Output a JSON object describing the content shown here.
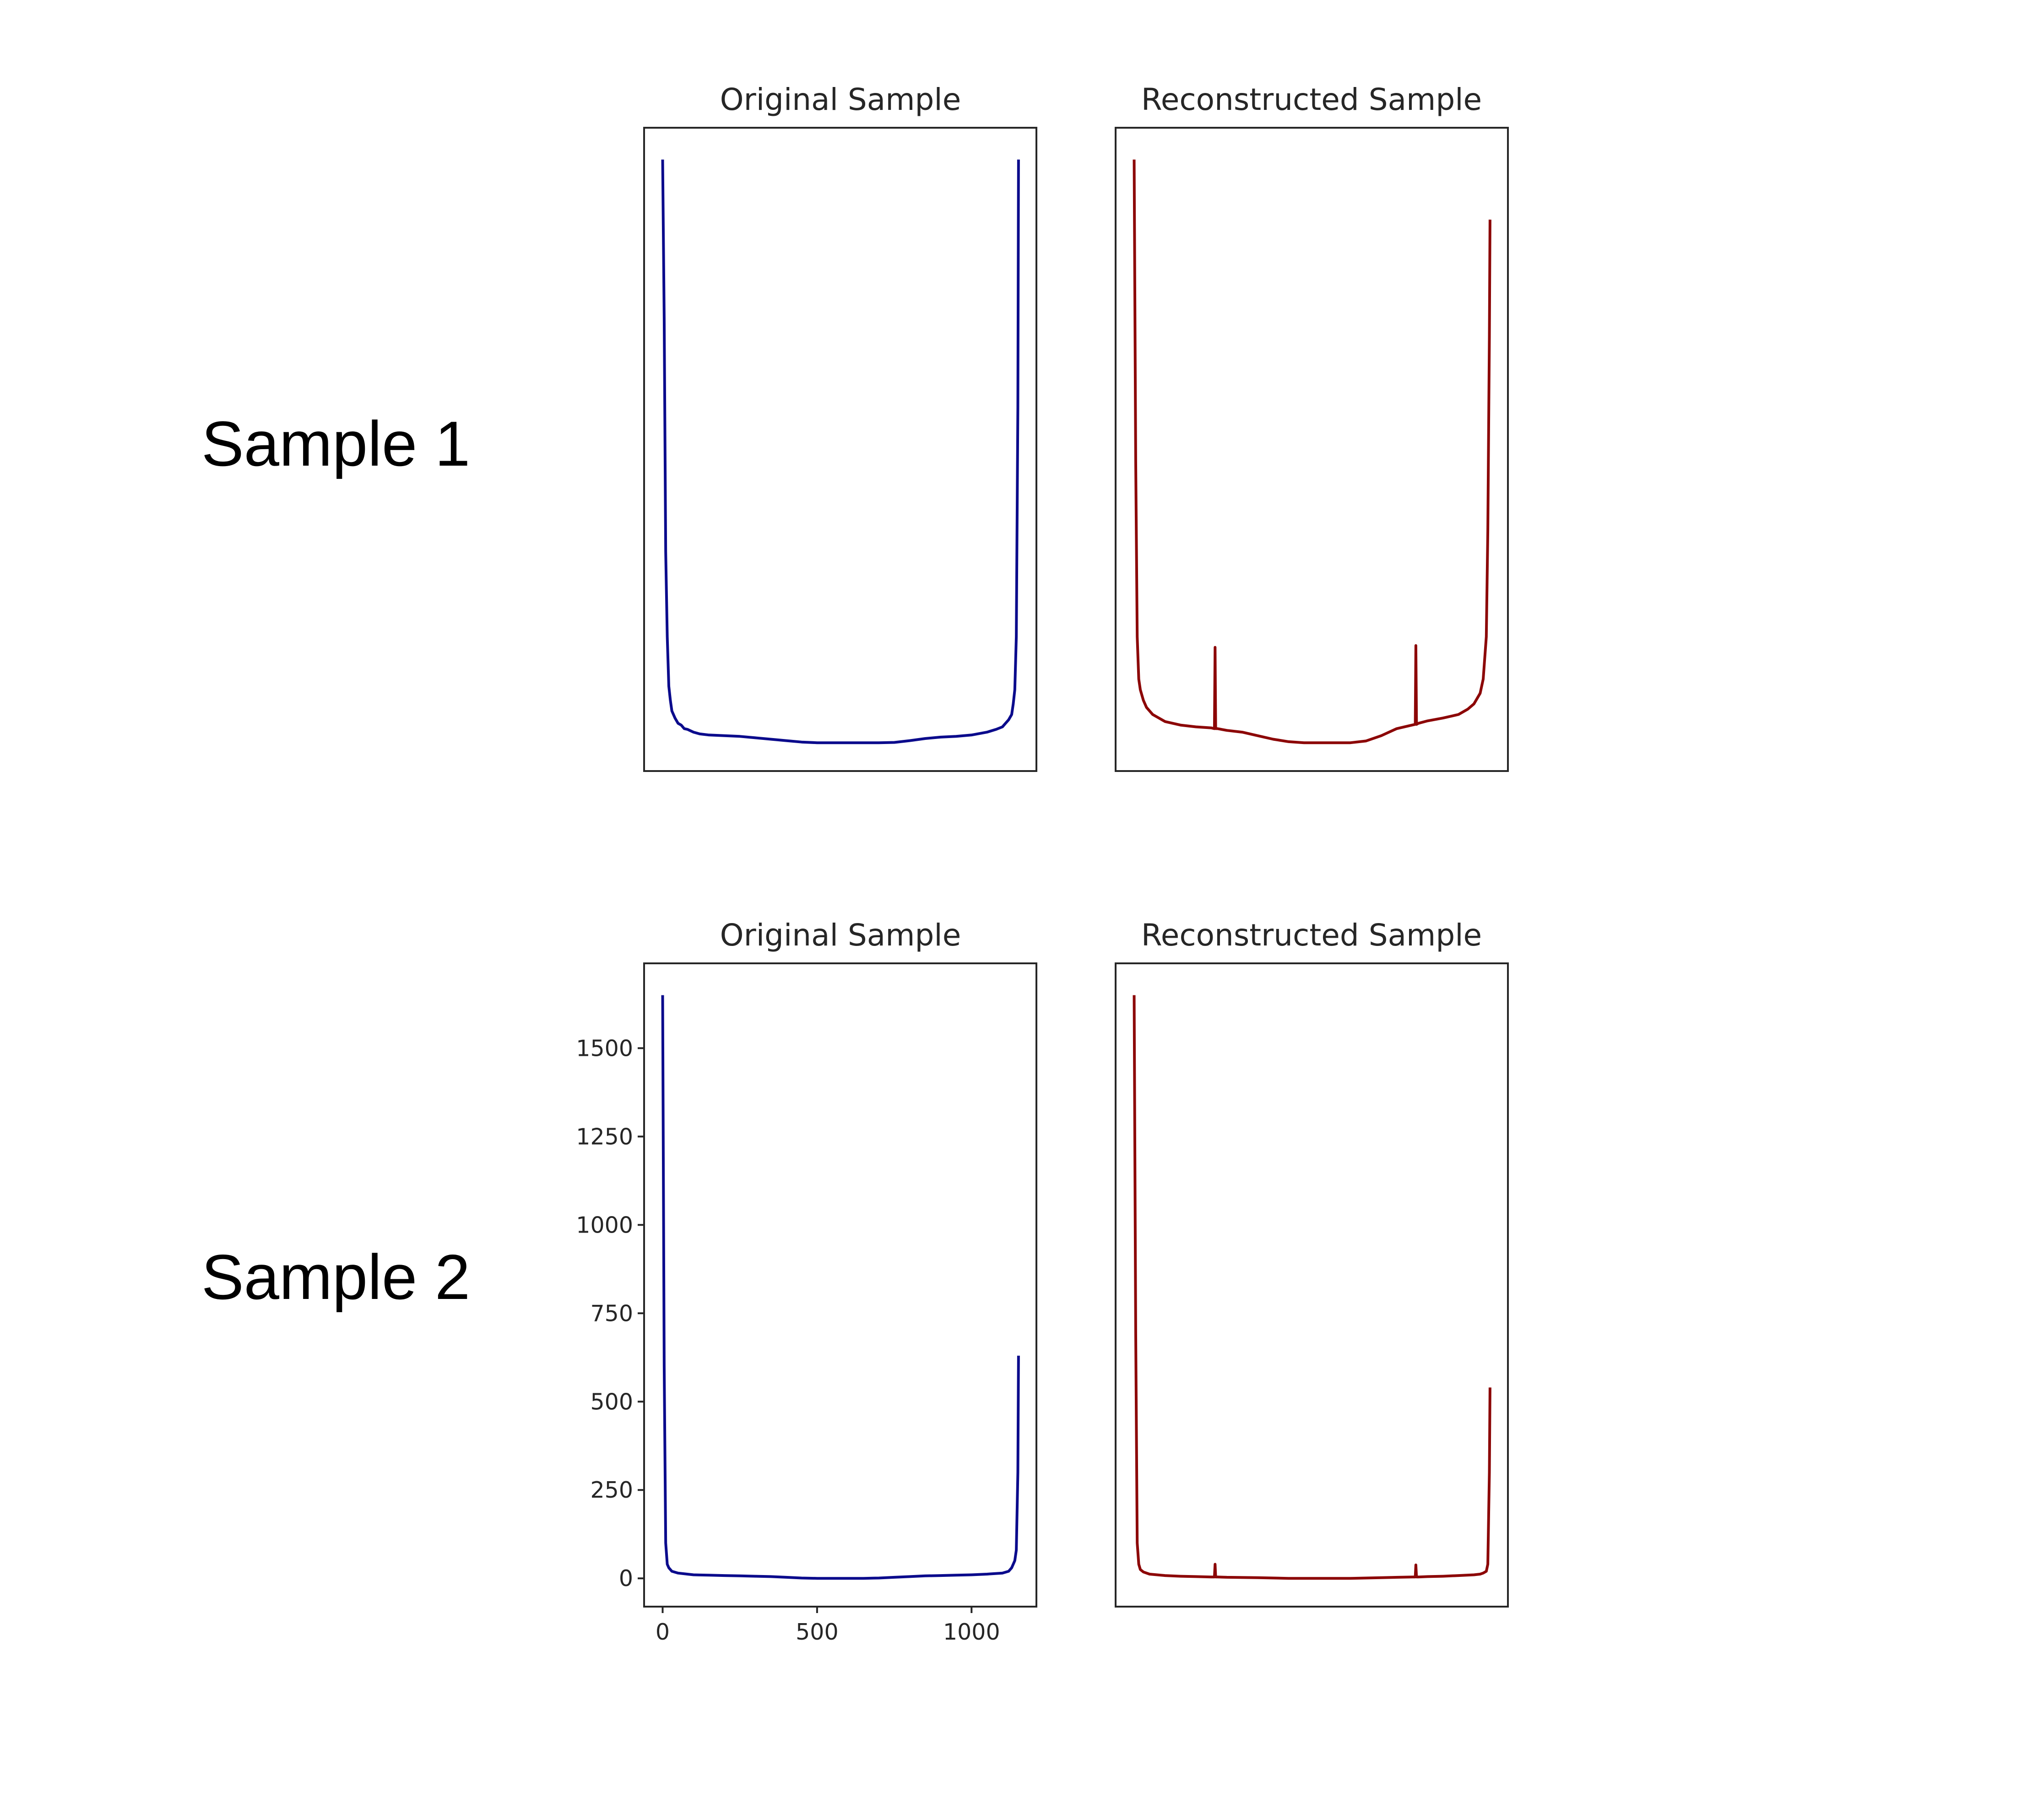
{
  "rows": [
    {
      "label": "Sample 1"
    },
    {
      "label": "Sample 2"
    }
  ],
  "colors": {
    "original": "#0b0b8c",
    "reconstructed": "#8c0606"
  },
  "chart_data": [
    {
      "type": "line",
      "title": "Original Sample",
      "color": "#0b0b8c",
      "show_x_ticks": false,
      "show_y_ticks": false,
      "xlim": [
        -60,
        1210
      ],
      "ylim": [
        -80,
        1740
      ],
      "series": [
        {
          "x": [
            0,
            5,
            10,
            15,
            20,
            25,
            30,
            40,
            50,
            60,
            70,
            80,
            100,
            120,
            150,
            200,
            250,
            300,
            350,
            400,
            450,
            500,
            550,
            600,
            650,
            700,
            750,
            800,
            850,
            900,
            950,
            1000,
            1050,
            1080,
            1100,
            1110,
            1120,
            1130,
            1135,
            1140,
            1145,
            1150,
            1152
          ],
          "y": [
            1650,
            1200,
            540,
            300,
            160,
            120,
            90,
            70,
            55,
            50,
            40,
            38,
            30,
            25,
            22,
            20,
            18,
            14,
            10,
            6,
            2,
            0,
            0,
            0,
            0,
            0,
            1,
            6,
            12,
            16,
            18,
            22,
            30,
            38,
            45,
            55,
            65,
            80,
            110,
            150,
            300,
            950,
            1650
          ]
        }
      ]
    },
    {
      "type": "line",
      "title": "Reconstructed Sample",
      "color": "#8c0606",
      "show_x_ticks": false,
      "show_y_ticks": false,
      "xlim": [
        -60,
        1210
      ],
      "ylim": [
        -80,
        1740
      ],
      "series": [
        {
          "x": [
            0,
            5,
            10,
            15,
            20,
            30,
            40,
            60,
            80,
            100,
            150,
            200,
            250,
            260,
            262,
            264,
            270,
            300,
            350,
            400,
            450,
            500,
            550,
            600,
            650,
            700,
            750,
            800,
            850,
            900,
            910,
            912,
            914,
            920,
            950,
            1000,
            1050,
            1080,
            1100,
            1120,
            1130,
            1140,
            1145,
            1150,
            1152
          ],
          "y": [
            1650,
            800,
            300,
            180,
            150,
            120,
            100,
            80,
            70,
            60,
            50,
            45,
            42,
            40,
            270,
            40,
            40,
            35,
            30,
            20,
            10,
            3,
            0,
            0,
            0,
            0,
            5,
            20,
            40,
            50,
            52,
            275,
            52,
            55,
            62,
            70,
            80,
            95,
            110,
            140,
            180,
            300,
            600,
            1150,
            1480
          ]
        }
      ]
    },
    {
      "type": "line",
      "title": "Original Sample",
      "color": "#0b0b8c",
      "show_x_ticks": true,
      "show_y_ticks": true,
      "xticks": [
        0,
        500,
        1000
      ],
      "yticks": [
        0,
        250,
        500,
        750,
        1000,
        1250,
        1500
      ],
      "xlim": [
        -60,
        1210
      ],
      "ylim": [
        -80,
        1740
      ],
      "series": [
        {
          "x": [
            0,
            5,
            10,
            15,
            20,
            30,
            50,
            80,
            100,
            150,
            200,
            250,
            300,
            350,
            400,
            450,
            500,
            550,
            600,
            650,
            700,
            750,
            800,
            850,
            900,
            950,
            1000,
            1050,
            1100,
            1120,
            1130,
            1140,
            1145,
            1150,
            1152
          ],
          "y": [
            1650,
            600,
            100,
            40,
            30,
            20,
            15,
            12,
            10,
            9,
            8,
            7,
            6,
            5,
            3,
            1,
            0,
            0,
            0,
            0,
            1,
            3,
            5,
            7,
            8,
            9,
            10,
            12,
            15,
            20,
            30,
            50,
            80,
            300,
            630
          ]
        }
      ]
    },
    {
      "type": "line",
      "title": "Reconstructed Sample",
      "color": "#8c0606",
      "show_x_ticks": false,
      "show_y_ticks": false,
      "xlim": [
        -60,
        1210
      ],
      "ylim": [
        -80,
        1740
      ],
      "series": [
        {
          "x": [
            0,
            5,
            10,
            15,
            20,
            30,
            50,
            100,
            150,
            200,
            250,
            260,
            262,
            264,
            270,
            300,
            400,
            500,
            600,
            700,
            800,
            900,
            910,
            912,
            914,
            920,
            950,
            1000,
            1050,
            1100,
            1120,
            1130,
            1140,
            1145,
            1150,
            1152
          ],
          "y": [
            1650,
            700,
            100,
            40,
            25,
            18,
            12,
            8,
            6,
            5,
            4,
            4,
            40,
            4,
            4,
            3,
            2,
            0,
            0,
            0,
            2,
            4,
            4,
            38,
            4,
            4,
            5,
            6,
            8,
            10,
            12,
            15,
            20,
            40,
            300,
            540
          ]
        }
      ]
    }
  ]
}
